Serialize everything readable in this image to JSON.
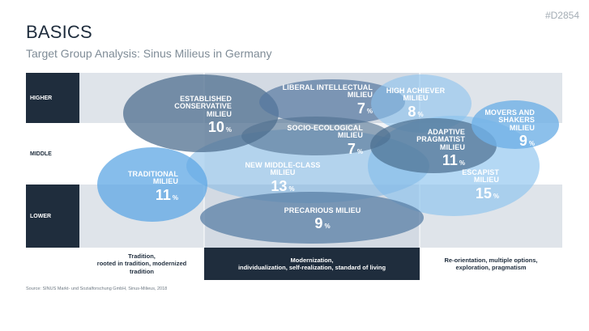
{
  "header": {
    "title": "BASICS",
    "subtitle": "Target Group Analysis: Sinus Milieus in Germany",
    "code": "#D2854"
  },
  "rows": [
    "HIGHER",
    "MIDDLE",
    "LOWER"
  ],
  "columns": [
    {
      "line1": "Tradition,",
      "line2": "rooted in tradition, modernized tradition"
    },
    {
      "line1": "Modernization,",
      "line2": "individualization, self-realization, standard of living"
    },
    {
      "line1": "Re-orientation, multiple options,",
      "line2": "exploration,  pragmatism"
    }
  ],
  "milieus": [
    {
      "name1": "ESTABLISHED",
      "name2": "CONSERVATIVE MILIEU",
      "value": "10",
      "unit": "%"
    },
    {
      "name1": "LIBERAL INTELLECTUAL MILIEU",
      "name2": "",
      "value": "7",
      "unit": "%"
    },
    {
      "name1": "HIGH ACHIEVER MILIEU",
      "name2": "",
      "value": "8",
      "unit": "%"
    },
    {
      "name1": "MOVERS AND",
      "name2": "SHAKERS MILIEU",
      "value": "9",
      "unit": "%"
    },
    {
      "name1": "SOCIO-ECOLOGICAL MILIEU",
      "name2": "",
      "value": "7",
      "unit": "%"
    },
    {
      "name1": "ADAPTIVE PRAGMATIST",
      "name2": "MILIEU",
      "value": "11",
      "unit": "%"
    },
    {
      "name1": "NEW MIDDLE-CLASS MILIEU",
      "name2": "",
      "value": "13",
      "unit": "%"
    },
    {
      "name1": "TRADITIONAL MILIEU",
      "name2": "",
      "value": "11",
      "unit": "%"
    },
    {
      "name1": "ESCAPIST MILIEU",
      "name2": "",
      "value": "15",
      "unit": "%"
    },
    {
      "name1": "PRECARIOUS MILIEU",
      "name2": "",
      "value": "9",
      "unit": "%"
    }
  ],
  "source": "Source: SINUS Markt- und Sozialforschung GmbH, Sinus-Milieus, 2018",
  "colors": {
    "dark": "#1f2d3d",
    "band": "#dde3ea",
    "blob_light": "#7fb8e6",
    "blob_mid": "#5f8fb6",
    "blob_dark": "#4a6d8e"
  }
}
